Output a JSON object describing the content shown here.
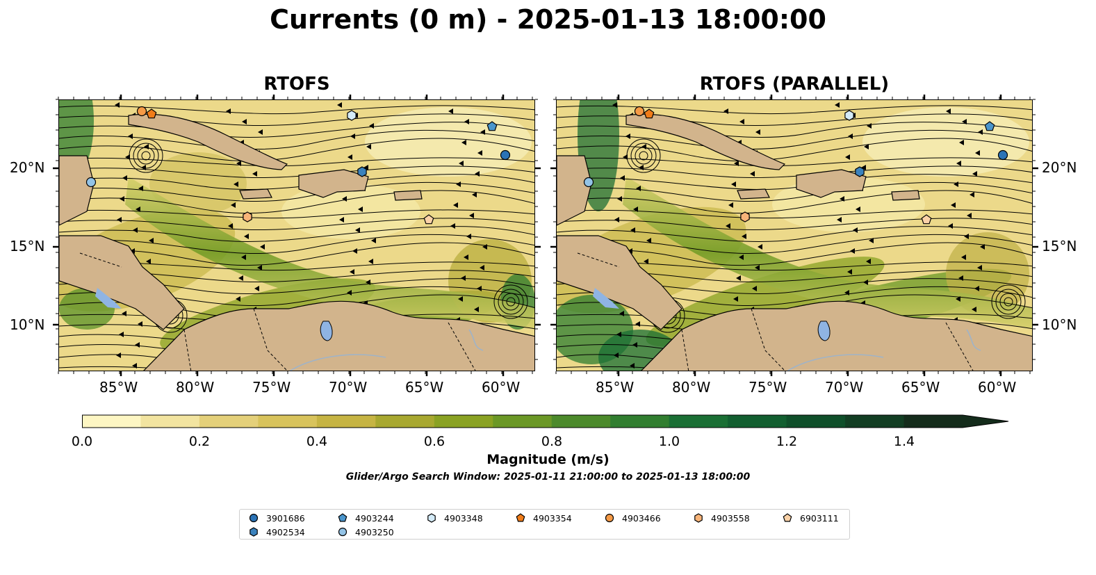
{
  "title": "Currents (0 m) - 2025-01-13 18:00:00",
  "panels": [
    {
      "title": "RTOFS"
    },
    {
      "title": "RTOFS (PARALLEL)"
    }
  ],
  "axes": {
    "lon_ticks": [
      "85°W",
      "80°W",
      "75°W",
      "70°W",
      "65°W",
      "60°W"
    ],
    "lat_ticks": [
      "20°N",
      "15°N",
      "10°N"
    ]
  },
  "colorbar": {
    "label": "Magnitude (m/s)",
    "ticks": [
      "0.0",
      "0.2",
      "0.4",
      "0.6",
      "0.8",
      "1.0",
      "1.2",
      "1.4"
    ],
    "range": [
      0.0,
      1.5
    ],
    "extend": "max",
    "colors": [
      "#fdf6c3",
      "#f2e4a0",
      "#e4d07a",
      "#d8c35c",
      "#c6b443",
      "#a8a830",
      "#8aa223",
      "#6b9826",
      "#4c8a2b",
      "#317e30",
      "#1a6f34",
      "#125f30",
      "#0f4f2a",
      "#123e23",
      "#142c1b"
    ]
  },
  "search_window": "Glider/Argo Search Window: 2025-01-11 21:00:00 to 2025-01-13 18:00:00",
  "legend": [
    {
      "id": "3901686",
      "marker": "circle",
      "color": "#2b73b6"
    },
    {
      "id": "4902534",
      "marker": "hexagon",
      "color": "#3b82bd"
    },
    {
      "id": "4903244",
      "marker": "pentagon",
      "color": "#4a95cc"
    },
    {
      "id": "4903250",
      "marker": "circle",
      "color": "#93c3e6"
    },
    {
      "id": "4903348",
      "marker": "hexagon",
      "color": "#d4ebf8"
    },
    {
      "id": "4903354",
      "marker": "pentagon",
      "color": "#f07c19"
    },
    {
      "id": "4903466",
      "marker": "circle",
      "color": "#f59a46"
    },
    {
      "id": "4903558",
      "marker": "hexagon",
      "color": "#f8b479"
    },
    {
      "id": "6903111",
      "marker": "pentagon",
      "color": "#fbd2a8"
    }
  ],
  "colors": {
    "land": "#d2b48c",
    "lake": "#8fb4e3",
    "river": "#9fb3c8"
  }
}
